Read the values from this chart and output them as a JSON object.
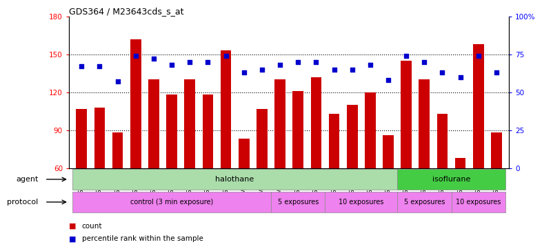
{
  "title": "GDS364 / M23643cds_s_at",
  "samples": [
    "GSM5082",
    "GSM5084",
    "GSM5085",
    "GSM5086",
    "GSM5087",
    "GSM5090",
    "GSM5105",
    "GSM5106",
    "GSM5107",
    "GSM11379",
    "GSM11380",
    "GSM11381",
    "GSM5111",
    "GSM5112",
    "GSM5113",
    "GSM5108",
    "GSM5109",
    "GSM5110",
    "GSM5117",
    "GSM5118",
    "GSM5119",
    "GSM5114",
    "GSM5115",
    "GSM5116"
  ],
  "counts": [
    107,
    108,
    88,
    162,
    130,
    118,
    130,
    118,
    153,
    83,
    107,
    130,
    121,
    132,
    103,
    110,
    120,
    86,
    145,
    130,
    103,
    68,
    158,
    88
  ],
  "percentiles": [
    67,
    67,
    57,
    74,
    72,
    68,
    70,
    70,
    74,
    63,
    65,
    68,
    70,
    70,
    65,
    65,
    68,
    58,
    74,
    70,
    63,
    60,
    74,
    63
  ],
  "ylim_left": [
    60,
    180
  ],
  "ylim_right": [
    0,
    100
  ],
  "yticks_left": [
    60,
    90,
    120,
    150,
    180
  ],
  "ytick_labels_left": [
    "60",
    "90",
    "120",
    "150",
    "180"
  ],
  "yticks_right": [
    0,
    25,
    50,
    75,
    100
  ],
  "ytick_labels_right": [
    "0",
    "25",
    "50",
    "75",
    "100%"
  ],
  "bar_color": "#cc0000",
  "dot_color": "#0000cc",
  "bar_bottom": 60,
  "dotgrid_lines": [
    90,
    120,
    150
  ],
  "agent_groups": [
    {
      "label": "halothane",
      "start": 0,
      "end": 18,
      "color": "#aaddaa"
    },
    {
      "label": "isoflurane",
      "start": 18,
      "end": 24,
      "color": "#44cc44"
    }
  ],
  "protocol_groups": [
    {
      "label": "control (3 min exposure)",
      "start": 0,
      "end": 11
    },
    {
      "label": "5 exposures",
      "start": 11,
      "end": 14
    },
    {
      "label": "10 exposures",
      "start": 14,
      "end": 18
    },
    {
      "label": "5 exposures",
      "start": 18,
      "end": 21
    },
    {
      "label": "10 exposures",
      "start": 21,
      "end": 24
    }
  ],
  "proto_color": "#ee82ee",
  "bg_color": "#ffffff"
}
